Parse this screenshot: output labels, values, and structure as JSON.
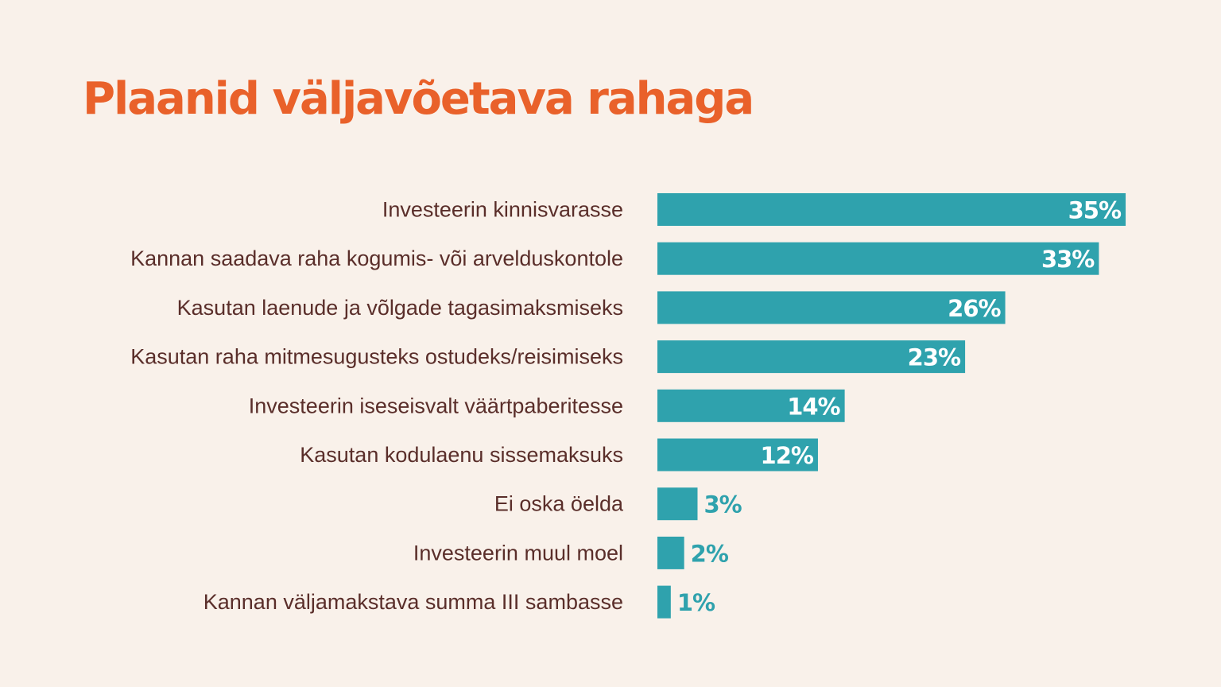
{
  "title": "Plaanid väljavõetava rahaga",
  "colors": {
    "background": "#f9f1ea",
    "title": "#e9612a",
    "bar": "#2fa2ad",
    "category_text": "#5a2e2a",
    "value_inside": "#ffffff",
    "value_outside": "#2fa2ad"
  },
  "chart_data": {
    "type": "bar",
    "orientation": "horizontal",
    "title": "Plaanid väljavõetava rahaga",
    "categories": [
      "Investeerin kinnisvarasse",
      "Kannan saadava raha kogumis- või arvelduskontole",
      "Kasutan laenude ja võlgade tagasimaksmiseks",
      "Kasutan raha mitmesugusteks ostudeks/reisimiseks",
      "Investeerin iseseisvalt väärtpaberitesse",
      "Kasutan kodulaenu sissemaksuks",
      "Ei oska öelda",
      "Investeerin muul moel",
      "Kannan väljamakstava summa III sambasse"
    ],
    "values": [
      35,
      33,
      26,
      23,
      14,
      12,
      3,
      2,
      1
    ],
    "value_labels": [
      "35%",
      "33%",
      "26%",
      "23%",
      "14%",
      "12%",
      "3%",
      "2%",
      "1%"
    ],
    "unit": "%",
    "grid": false,
    "legend": "none"
  }
}
